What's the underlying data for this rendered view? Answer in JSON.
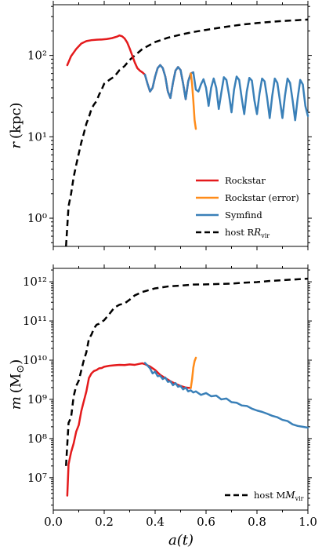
{
  "chart_data": [
    {
      "type": "line",
      "xlabel": "",
      "ylabel": "r (kpc)",
      "xlim": [
        0.0,
        1.0
      ],
      "ylim": [
        0.45,
        420
      ],
      "yscale": "log",
      "yticks": [
        "10⁰",
        "10¹",
        "10²"
      ],
      "legend_position": "lower-right",
      "series": [
        {
          "name": "Rockstar",
          "color": "#e41a1c",
          "style": "solid",
          "x": [
            0.055,
            0.07,
            0.09,
            0.11,
            0.13,
            0.15,
            0.17,
            0.19,
            0.21,
            0.23,
            0.25,
            0.26,
            0.27,
            0.28,
            0.29,
            0.3,
            0.31,
            0.32,
            0.33,
            0.34,
            0.35,
            0.36,
            0.37,
            0.38,
            0.39,
            0.4,
            0.41,
            0.42,
            0.43,
            0.44,
            0.45,
            0.46,
            0.47,
            0.48,
            0.49,
            0.5,
            0.51,
            0.52,
            0.53,
            0.54,
            0.55
          ],
          "y": [
            76,
            98,
            120,
            140,
            150,
            154,
            156,
            157,
            159,
            163,
            170,
            176,
            172,
            162,
            145,
            122,
            100,
            82,
            70,
            65,
            62,
            58,
            45,
            36,
            40,
            55,
            70,
            76,
            70,
            55,
            36,
            30,
            46,
            65,
            72,
            66,
            45,
            29,
            48,
            60,
            62
          ]
        },
        {
          "name": "Rockstar (error)",
          "color": "#ff8c1a",
          "style": "solid",
          "x": [
            0.54,
            0.545,
            0.55,
            0.555,
            0.56
          ],
          "y": [
            60,
            45,
            28,
            16,
            12.5
          ]
        },
        {
          "name": "Symfind",
          "color": "#3a80b8",
          "style": "solid",
          "x": [
            0.36,
            0.37,
            0.38,
            0.39,
            0.4,
            0.41,
            0.42,
            0.43,
            0.44,
            0.45,
            0.46,
            0.47,
            0.48,
            0.49,
            0.5,
            0.51,
            0.52,
            0.53,
            0.54,
            0.55,
            0.56,
            0.57,
            0.58,
            0.59,
            0.6,
            0.61,
            0.62,
            0.63,
            0.64,
            0.65,
            0.66,
            0.67,
            0.68,
            0.69,
            0.7,
            0.71,
            0.72,
            0.73,
            0.74,
            0.75,
            0.76,
            0.77,
            0.78,
            0.79,
            0.8,
            0.81,
            0.82,
            0.83,
            0.84,
            0.85,
            0.86,
            0.87,
            0.88,
            0.89,
            0.9,
            0.91,
            0.92,
            0.93,
            0.94,
            0.95,
            0.96,
            0.97,
            0.98,
            0.99,
            1.0
          ],
          "y": [
            58,
            45,
            36,
            40,
            55,
            70,
            76,
            70,
            55,
            36,
            30,
            46,
            65,
            72,
            66,
            45,
            29,
            48,
            60,
            62,
            38,
            36,
            44,
            51,
            40,
            24,
            40,
            52,
            40,
            22,
            35,
            54,
            50,
            33,
            20,
            38,
            55,
            50,
            30,
            19,
            36,
            53,
            49,
            28,
            19,
            34,
            52,
            48,
            30,
            17,
            32,
            52,
            46,
            28,
            17,
            32,
            52,
            46,
            28,
            16,
            30,
            50,
            44,
            24,
            18
          ]
        },
        {
          "name": "host R_vir",
          "color": "#000000",
          "style": "dashed",
          "x": [
            0.05,
            0.06,
            0.07,
            0.08,
            0.09,
            0.1,
            0.11,
            0.12,
            0.13,
            0.14,
            0.15,
            0.16,
            0.17,
            0.18,
            0.19,
            0.2,
            0.22,
            0.24,
            0.26,
            0.28,
            0.3,
            0.35,
            0.4,
            0.45,
            0.5,
            0.55,
            0.6,
            0.65,
            0.7,
            0.75,
            0.8,
            0.85,
            0.9,
            0.95,
            1.0
          ],
          "y": [
            0.45,
            1.4,
            2.0,
            3.2,
            4.5,
            6.2,
            8.5,
            11,
            14.5,
            17.5,
            22,
            25,
            27.5,
            33,
            38,
            45,
            50,
            55,
            66,
            74,
            88,
            120,
            146,
            165,
            180,
            194,
            206,
            218,
            230,
            241,
            250,
            258,
            265,
            270,
            276
          ]
        }
      ]
    },
    {
      "type": "line",
      "xlabel": "a(t)",
      "ylabel": "m (M⊙)",
      "xlim": [
        0.0,
        1.0
      ],
      "ylim": [
        1500000.0,
        2200000000000.0
      ],
      "yscale": "log",
      "xticks": [
        "0.0",
        "0.2",
        "0.4",
        "0.6",
        "0.8",
        "1.0"
      ],
      "yticks": [
        "10⁷",
        "10⁸",
        "10⁹",
        "10¹⁰",
        "10¹¹",
        "10¹²"
      ],
      "legend_position": "lower-right",
      "series": [
        {
          "name": "Rockstar",
          "color": "#e41a1c",
          "style": "solid",
          "x": [
            0.055,
            0.06,
            0.07,
            0.08,
            0.09,
            0.1,
            0.11,
            0.12,
            0.13,
            0.14,
            0.15,
            0.16,
            0.17,
            0.18,
            0.19,
            0.2,
            0.22,
            0.24,
            0.26,
            0.28,
            0.3,
            0.32,
            0.34,
            0.35,
            0.36,
            0.38,
            0.4,
            0.42,
            0.44,
            0.46,
            0.48,
            0.5,
            0.52,
            0.54
          ],
          "y": [
            3500000.0,
            22000000.0,
            45000000.0,
            75000000.0,
            150000000.0,
            220000000.0,
            500000000.0,
            900000000.0,
            1600000000.0,
            3500000000.0,
            4600000000.0,
            5300000000.0,
            5600000000.0,
            6200000000.0,
            6300000000.0,
            6800000000.0,
            7200000000.0,
            7400000000.0,
            7600000000.0,
            7500000000.0,
            7800000000.0,
            7600000000.0,
            8100000000.0,
            8300000000.0,
            7900000000.0,
            6900000000.0,
            5600000000.0,
            4200000000.0,
            3500000000.0,
            2900000000.0,
            2500000000.0,
            2200000000.0,
            2000000000.0,
            1950000000.0
          ]
        },
        {
          "name": "Rockstar (error)",
          "color": "#ff8c1a",
          "style": "solid",
          "x": [
            0.54,
            0.545,
            0.55,
            0.555,
            0.56
          ],
          "y": [
            1950000000.0,
            3200000000.0,
            6500000000.0,
            9500000000.0,
            11500000000.0
          ]
        },
        {
          "name": "Symfind",
          "color": "#3a80b8",
          "style": "solid",
          "x": [
            0.36,
            0.37,
            0.38,
            0.39,
            0.4,
            0.41,
            0.42,
            0.43,
            0.44,
            0.45,
            0.46,
            0.47,
            0.48,
            0.49,
            0.5,
            0.51,
            0.52,
            0.53,
            0.54,
            0.55,
            0.56,
            0.58,
            0.6,
            0.62,
            0.64,
            0.66,
            0.68,
            0.7,
            0.72,
            0.74,
            0.76,
            0.78,
            0.8,
            0.82,
            0.84,
            0.86,
            0.88,
            0.9,
            0.92,
            0.94,
            0.96,
            0.98,
            1.0
          ],
          "y": [
            8500000000.0,
            7300000000.0,
            6200000000.0,
            4600000000.0,
            5100000000.0,
            3900000000.0,
            4000000000.0,
            3300000000.0,
            3600000000.0,
            2800000000.0,
            2900000000.0,
            2300000000.0,
            2600000000.0,
            2100000000.0,
            2200000000.0,
            1800000000.0,
            2000000000.0,
            1600000000.0,
            1700000000.0,
            1500000000.0,
            1600000000.0,
            1300000000.0,
            1450000000.0,
            1200000000.0,
            1250000000.0,
            1000000000.0,
            1050000000.0,
            850000000.0,
            820000000.0,
            700000000.0,
            680000000.0,
            580000000.0,
            520000000.0,
            480000000.0,
            430000000.0,
            380000000.0,
            350000000.0,
            300000000.0,
            280000000.0,
            230000000.0,
            210000000.0,
            200000000.0,
            190000000.0
          ]
        },
        {
          "name": "host M_vir",
          "color": "#000000",
          "style": "dashed",
          "x": [
            0.05,
            0.06,
            0.07,
            0.08,
            0.09,
            0.1,
            0.11,
            0.12,
            0.13,
            0.14,
            0.15,
            0.16,
            0.17,
            0.18,
            0.2,
            0.22,
            0.24,
            0.26,
            0.28,
            0.3,
            0.32,
            0.35,
            0.4,
            0.45,
            0.5,
            0.55,
            0.6,
            0.65,
            0.7,
            0.75,
            0.8,
            0.85,
            0.9,
            0.95,
            1.0
          ],
          "y": [
            20000000.0,
            250000000.0,
            350000000.0,
            1200000000.0,
            2200000000.0,
            3000000000.0,
            5500000000.0,
            10000000000.0,
            16000000000.0,
            35000000000.0,
            45000000000.0,
            65000000000.0,
            80000000000.0,
            85000000000.0,
            105000000000.0,
            150000000000.0,
            220000000000.0,
            260000000000.0,
            280000000000.0,
            350000000000.0,
            450000000000.0,
            550000000000.0,
            680000000000.0,
            760000000000.0,
            800000000000.0,
            850000000000.0,
            860000000000.0,
            880000000000.0,
            900000000000.0,
            950000000000.0,
            980000000000.0,
            1050000000000.0,
            1100000000000.0,
            1150000000000.0,
            1200000000000.0
          ]
        }
      ]
    }
  ],
  "legend_top": [
    "Rockstar",
    "Rockstar (error)",
    "Symfind",
    "host R",
    "vir"
  ],
  "legend_bottom": [
    "host M",
    "vir"
  ],
  "axis_text": {
    "top_ylabel_var": "r",
    "top_ylabel_unit": "(kpc)",
    "bottom_ylabel_var": "m",
    "bottom_ylabel_unit": "(M",
    "bottom_ylabel_sun": "⊙",
    "bottom_ylabel_close": ")",
    "xlabel": "a(t)"
  }
}
